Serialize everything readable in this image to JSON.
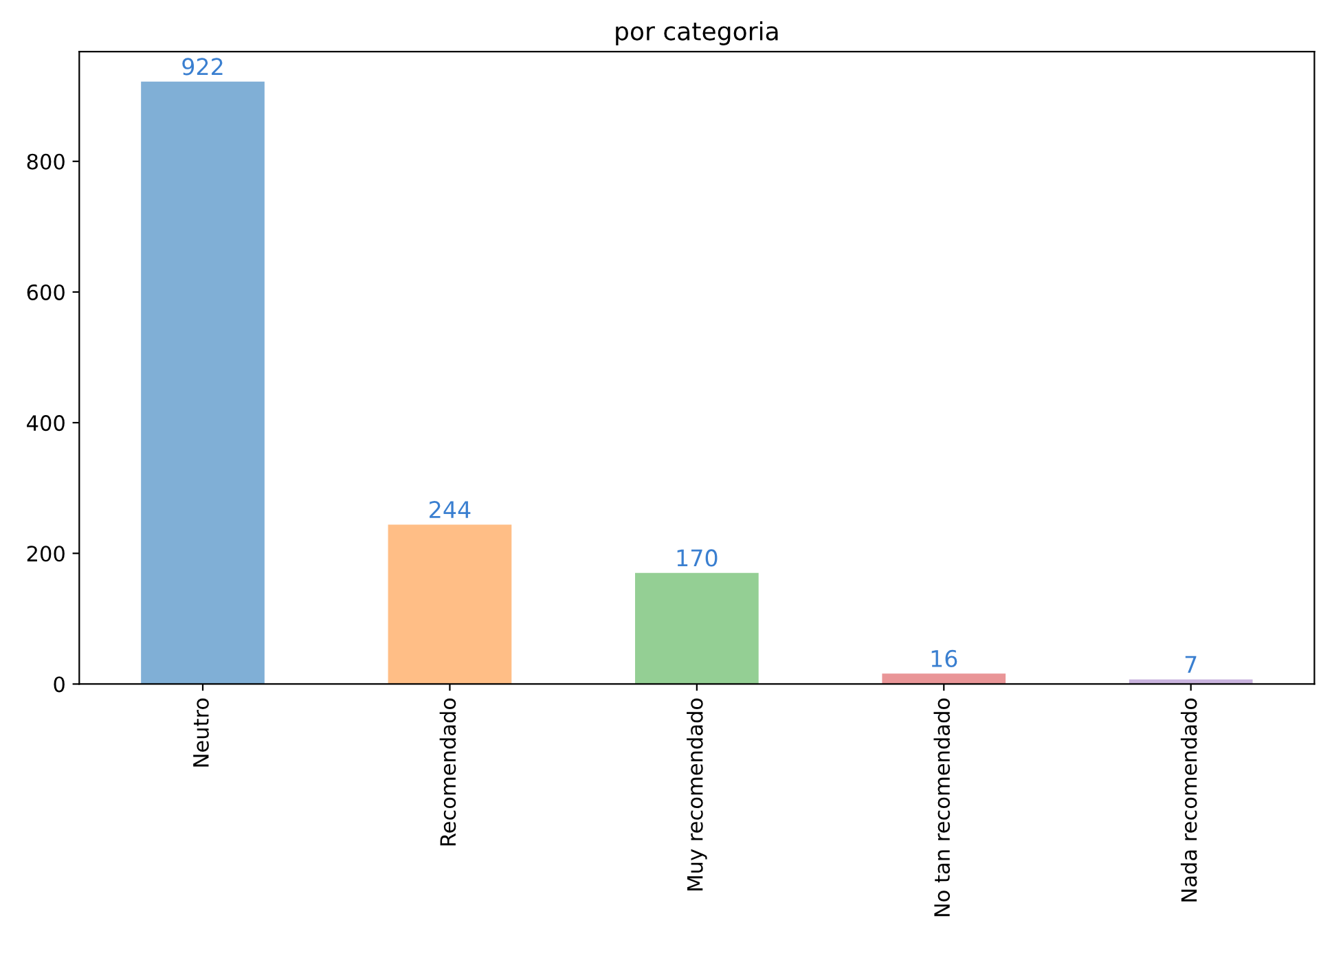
{
  "chart_data": {
    "type": "bar",
    "title": "por categoria",
    "categories": [
      "Neutro",
      "Recomendado",
      "Muy recomendado",
      "No tan recomendado",
      "Nada recomendado"
    ],
    "values": [
      922,
      244,
      170,
      16,
      7
    ],
    "colors": [
      "#80afd6",
      "#ffbe86",
      "#94cf94",
      "#e99597",
      "#c9b3de"
    ],
    "ylim": [
      0,
      968
    ],
    "yticks": [
      0,
      200,
      400,
      600,
      800
    ],
    "grid": false,
    "data_labels": true
  }
}
